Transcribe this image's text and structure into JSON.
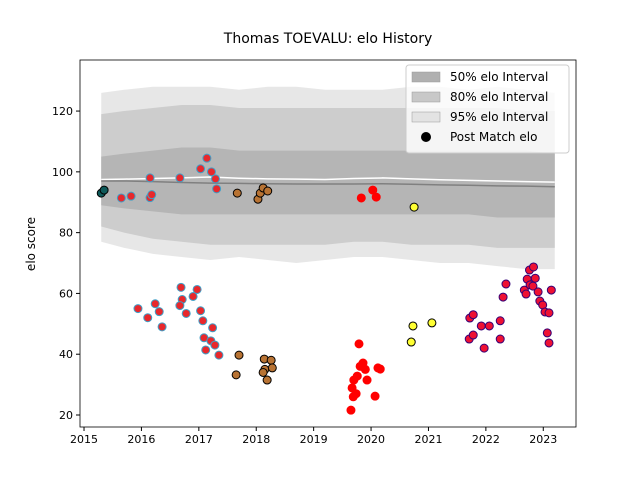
{
  "chart_data": {
    "type": "interval_scatter",
    "title": "Thomas TOEVALU: elo History",
    "ylabel": "elo score",
    "xlim": [
      2014.93,
      2023.57
    ],
    "ylim": [
      16.05,
      136.8
    ],
    "xticks": [
      2015,
      2016,
      2017,
      2018,
      2019,
      2020,
      2021,
      2022,
      2023
    ],
    "yticks": [
      20,
      40,
      60,
      80,
      100,
      120
    ],
    "legend": "upper right",
    "band_x": [
      2015.3,
      2015.7,
      2016.2,
      2016.7,
      2017.2,
      2017.7,
      2018.2,
      2018.7,
      2019.2,
      2019.7,
      2020.2,
      2020.7,
      2021.2,
      2021.7,
      2022.2,
      2022.7,
      2023.2
    ],
    "bands": [
      {
        "name": "95% elo Interval",
        "color": "#e3e3e3",
        "lower": [
          77,
          75,
          73,
          72,
          71,
          72,
          71,
          70,
          71,
          72,
          72,
          71,
          70,
          70,
          69,
          68,
          68
        ],
        "upper": [
          126,
          127,
          128,
          128,
          128,
          127,
          128,
          128,
          127,
          127,
          127,
          128,
          128,
          127,
          128,
          127,
          126
        ]
      },
      {
        "name": "80% elo Interval",
        "color": "#c8c8c8",
        "lower": [
          82,
          80,
          78,
          77,
          76,
          76,
          76,
          76,
          76,
          77,
          77,
          76,
          76,
          76,
          75,
          75,
          75
        ],
        "upper": [
          119,
          120,
          121,
          122,
          122,
          121,
          121,
          121,
          121,
          121,
          121,
          121,
          121,
          121,
          121,
          120,
          120
        ]
      },
      {
        "name": "50% elo Interval",
        "color": "#b0b0b0",
        "lower": [
          89,
          88,
          87,
          86,
          86,
          86,
          86,
          86,
          86,
          86,
          86,
          86,
          86,
          86,
          85,
          85,
          85
        ],
        "upper": [
          105,
          106,
          107,
          108,
          108,
          107,
          107,
          107,
          107,
          107,
          107,
          107,
          107,
          107,
          107,
          107,
          106
        ]
      }
    ],
    "center_lines": [
      {
        "color": "#ffffff",
        "values": [
          97.5,
          97.6,
          97.8,
          98,
          98.3,
          97.9,
          97.7,
          97.6,
          97.5,
          97.8,
          98,
          97.7,
          97.4,
          97.2,
          97,
          96.8,
          96.6
        ]
      },
      {
        "color": "#808080",
        "values": [
          97,
          97,
          96.8,
          96.5,
          96.3,
          96.2,
          96.1,
          96,
          96,
          96,
          96.1,
          95.9,
          95.7,
          95.6,
          95.4,
          95.3,
          95.1
        ]
      }
    ],
    "series": [
      {
        "name": "Post Match elo",
        "legend_color": "#000000",
        "x": [
          2015.3,
          2015.35,
          2015.65,
          2015.82,
          2016.15,
          2016.18,
          2016.67,
          2016.15,
          2017.14,
          2017.03,
          2017.22,
          2017.29,
          2017.31,
          2015.94,
          2016.11,
          2016.24,
          2016.31,
          2016.36,
          2016.69,
          2016.71,
          2016.78,
          2016.9,
          2016.97,
          2016.67,
          2017.03,
          2017.07,
          2017.09,
          2017.12,
          2017.21,
          2017.24,
          2017.28,
          2017.35,
          2017.67,
          2018.03,
          2018.07,
          2018.12,
          2018.2,
          2017.7,
          2017.65,
          2018.14,
          2018.26,
          2018.15,
          2018.12,
          2018.28,
          2018.19,
          2019.83,
          2020.03,
          2020.09,
          2019.79,
          2019.65,
          2019.67,
          2019.7,
          2019.76,
          2019.74,
          2019.81,
          2019.86,
          2019.9,
          2019.93,
          2019.69,
          2020.07,
          2020.12,
          2020.16,
          2020.75,
          2020.73,
          2020.7,
          2021.06,
          2021.72,
          2021.78,
          2021.92,
          2022.06,
          2021.71,
          2021.78,
          2021.97,
          2022.25,
          2022.25,
          2022.3,
          2022.35,
          2022.67,
          2022.7,
          2022.72,
          2022.76,
          2022.83,
          2022.77,
          2022.86,
          2022.82,
          2022.91,
          2022.94,
          2022.99,
          2023.03,
          2023.1,
          2023.14,
          2023.07,
          2023.1
        ],
        "values": [
          93,
          94,
          91.4,
          92,
          91.5,
          92.5,
          98,
          98,
          104.5,
          101,
          100,
          97.7,
          94.4,
          55,
          52,
          56.6,
          54,
          49,
          62,
          58,
          53.4,
          59,
          61.3,
          56,
          54.3,
          51,
          45.4,
          41.4,
          44.4,
          48.7,
          43,
          39.7,
          93,
          91,
          93,
          94.7,
          93.7,
          39.7,
          33.2,
          38.4,
          38,
          35,
          34,
          35.5,
          31.5,
          91.4,
          94,
          91.7,
          43.4,
          21.6,
          28.9,
          31.5,
          32.8,
          27,
          36,
          37.1,
          35,
          31.5,
          26,
          26.2,
          35.5,
          35.1,
          88.4,
          49.3,
          44,
          50.3,
          51.9,
          53,
          49.3,
          49.3,
          45,
          46.3,
          42,
          51,
          45,
          58.8,
          63.1,
          61.1,
          59.8,
          64.7,
          67.7,
          68.7,
          62.8,
          65,
          62.4,
          60.5,
          57.5,
          56.2,
          53.9,
          53.6,
          61.1,
          47,
          43.7
        ],
        "colors": [
          "#0e5a5a",
          "#0e5a5a",
          "#e8282c",
          "#e8282c",
          "#e8282c",
          "#e8282c",
          "#e8282c",
          "#e8282c",
          "#e8282c",
          "#e8282c",
          "#e8282c",
          "#e8282c",
          "#e8282c",
          "#e8282c",
          "#e8282c",
          "#e8282c",
          "#e8282c",
          "#e8282c",
          "#e8282c",
          "#e8282c",
          "#e8282c",
          "#e8282c",
          "#e8282c",
          "#e8282c",
          "#e8282c",
          "#e8282c",
          "#e8282c",
          "#e8282c",
          "#e8282c",
          "#e8282c",
          "#e8282c",
          "#e8282c",
          "#b87333",
          "#b87333",
          "#b87333",
          "#b87333",
          "#b87333",
          "#b87333",
          "#b87333",
          "#b87333",
          "#b87333",
          "#b87333",
          "#b87333",
          "#b87333",
          "#b87333",
          "#ff0000",
          "#ff0000",
          "#ff0000",
          "#ff0000",
          "#ff0000",
          "#ff0000",
          "#ff0000",
          "#ff0000",
          "#ff0000",
          "#ff0000",
          "#ff0000",
          "#ff0000",
          "#ff0000",
          "#ff0000",
          "#ff0000",
          "#ff0000",
          "#ff0000",
          "#ffff33",
          "#ffff33",
          "#ffff33",
          "#ffff33",
          "#ee1133",
          "#ee1133",
          "#ee1133",
          "#ee1133",
          "#ee1133",
          "#ee1133",
          "#ee1133",
          "#ee1133",
          "#ee1133",
          "#ee1133",
          "#ee1133",
          "#ee1133",
          "#ee1133",
          "#ee1133",
          "#ee1133",
          "#ee1133",
          "#ee1133",
          "#ee1133",
          "#ee1133",
          "#ee1133",
          "#ee1133",
          "#ee1133",
          "#ee1133",
          "#ee1133",
          "#ee1133",
          "#ee1133",
          "#ee1133"
        ],
        "edgecolors": [
          "#000000",
          "#000000",
          "#3fa0c8",
          "#3fa0c8",
          "#3fa0c8",
          "#3fa0c8",
          "#3fa0c8",
          "#3fa0c8",
          "#3fa0c8",
          "#3fa0c8",
          "#3fa0c8",
          "#3fa0c8",
          "#3fa0c8",
          "#3fa0c8",
          "#3fa0c8",
          "#3fa0c8",
          "#3fa0c8",
          "#3fa0c8",
          "#3fa0c8",
          "#3fa0c8",
          "#3fa0c8",
          "#3fa0c8",
          "#3fa0c8",
          "#3fa0c8",
          "#3fa0c8",
          "#3fa0c8",
          "#3fa0c8",
          "#3fa0c8",
          "#3fa0c8",
          "#3fa0c8",
          "#3fa0c8",
          "#3fa0c8",
          "#000000",
          "#000000",
          "#000000",
          "#000000",
          "#000000",
          "#000000",
          "#000000",
          "#000000",
          "#000000",
          "#000000",
          "#000000",
          "#000000",
          "#000000",
          "#ff0000",
          "#ff0000",
          "#ff0000",
          "#ff0000",
          "#ff0000",
          "#ff0000",
          "#ff0000",
          "#ff0000",
          "#ff0000",
          "#ff0000",
          "#ff0000",
          "#ff0000",
          "#ff0000",
          "#ff0000",
          "#ff0000",
          "#ff0000",
          "#ff0000",
          "#000000",
          "#000000",
          "#000000",
          "#000000",
          "#330077",
          "#330077",
          "#330077",
          "#330077",
          "#330077",
          "#330077",
          "#330077",
          "#330077",
          "#330077",
          "#330077",
          "#330077",
          "#330077",
          "#330077",
          "#330077",
          "#330077",
          "#330077",
          "#330077",
          "#330077",
          "#330077",
          "#330077",
          "#330077",
          "#330077",
          "#330077",
          "#330077",
          "#330077",
          "#330077",
          "#330077"
        ]
      }
    ]
  }
}
